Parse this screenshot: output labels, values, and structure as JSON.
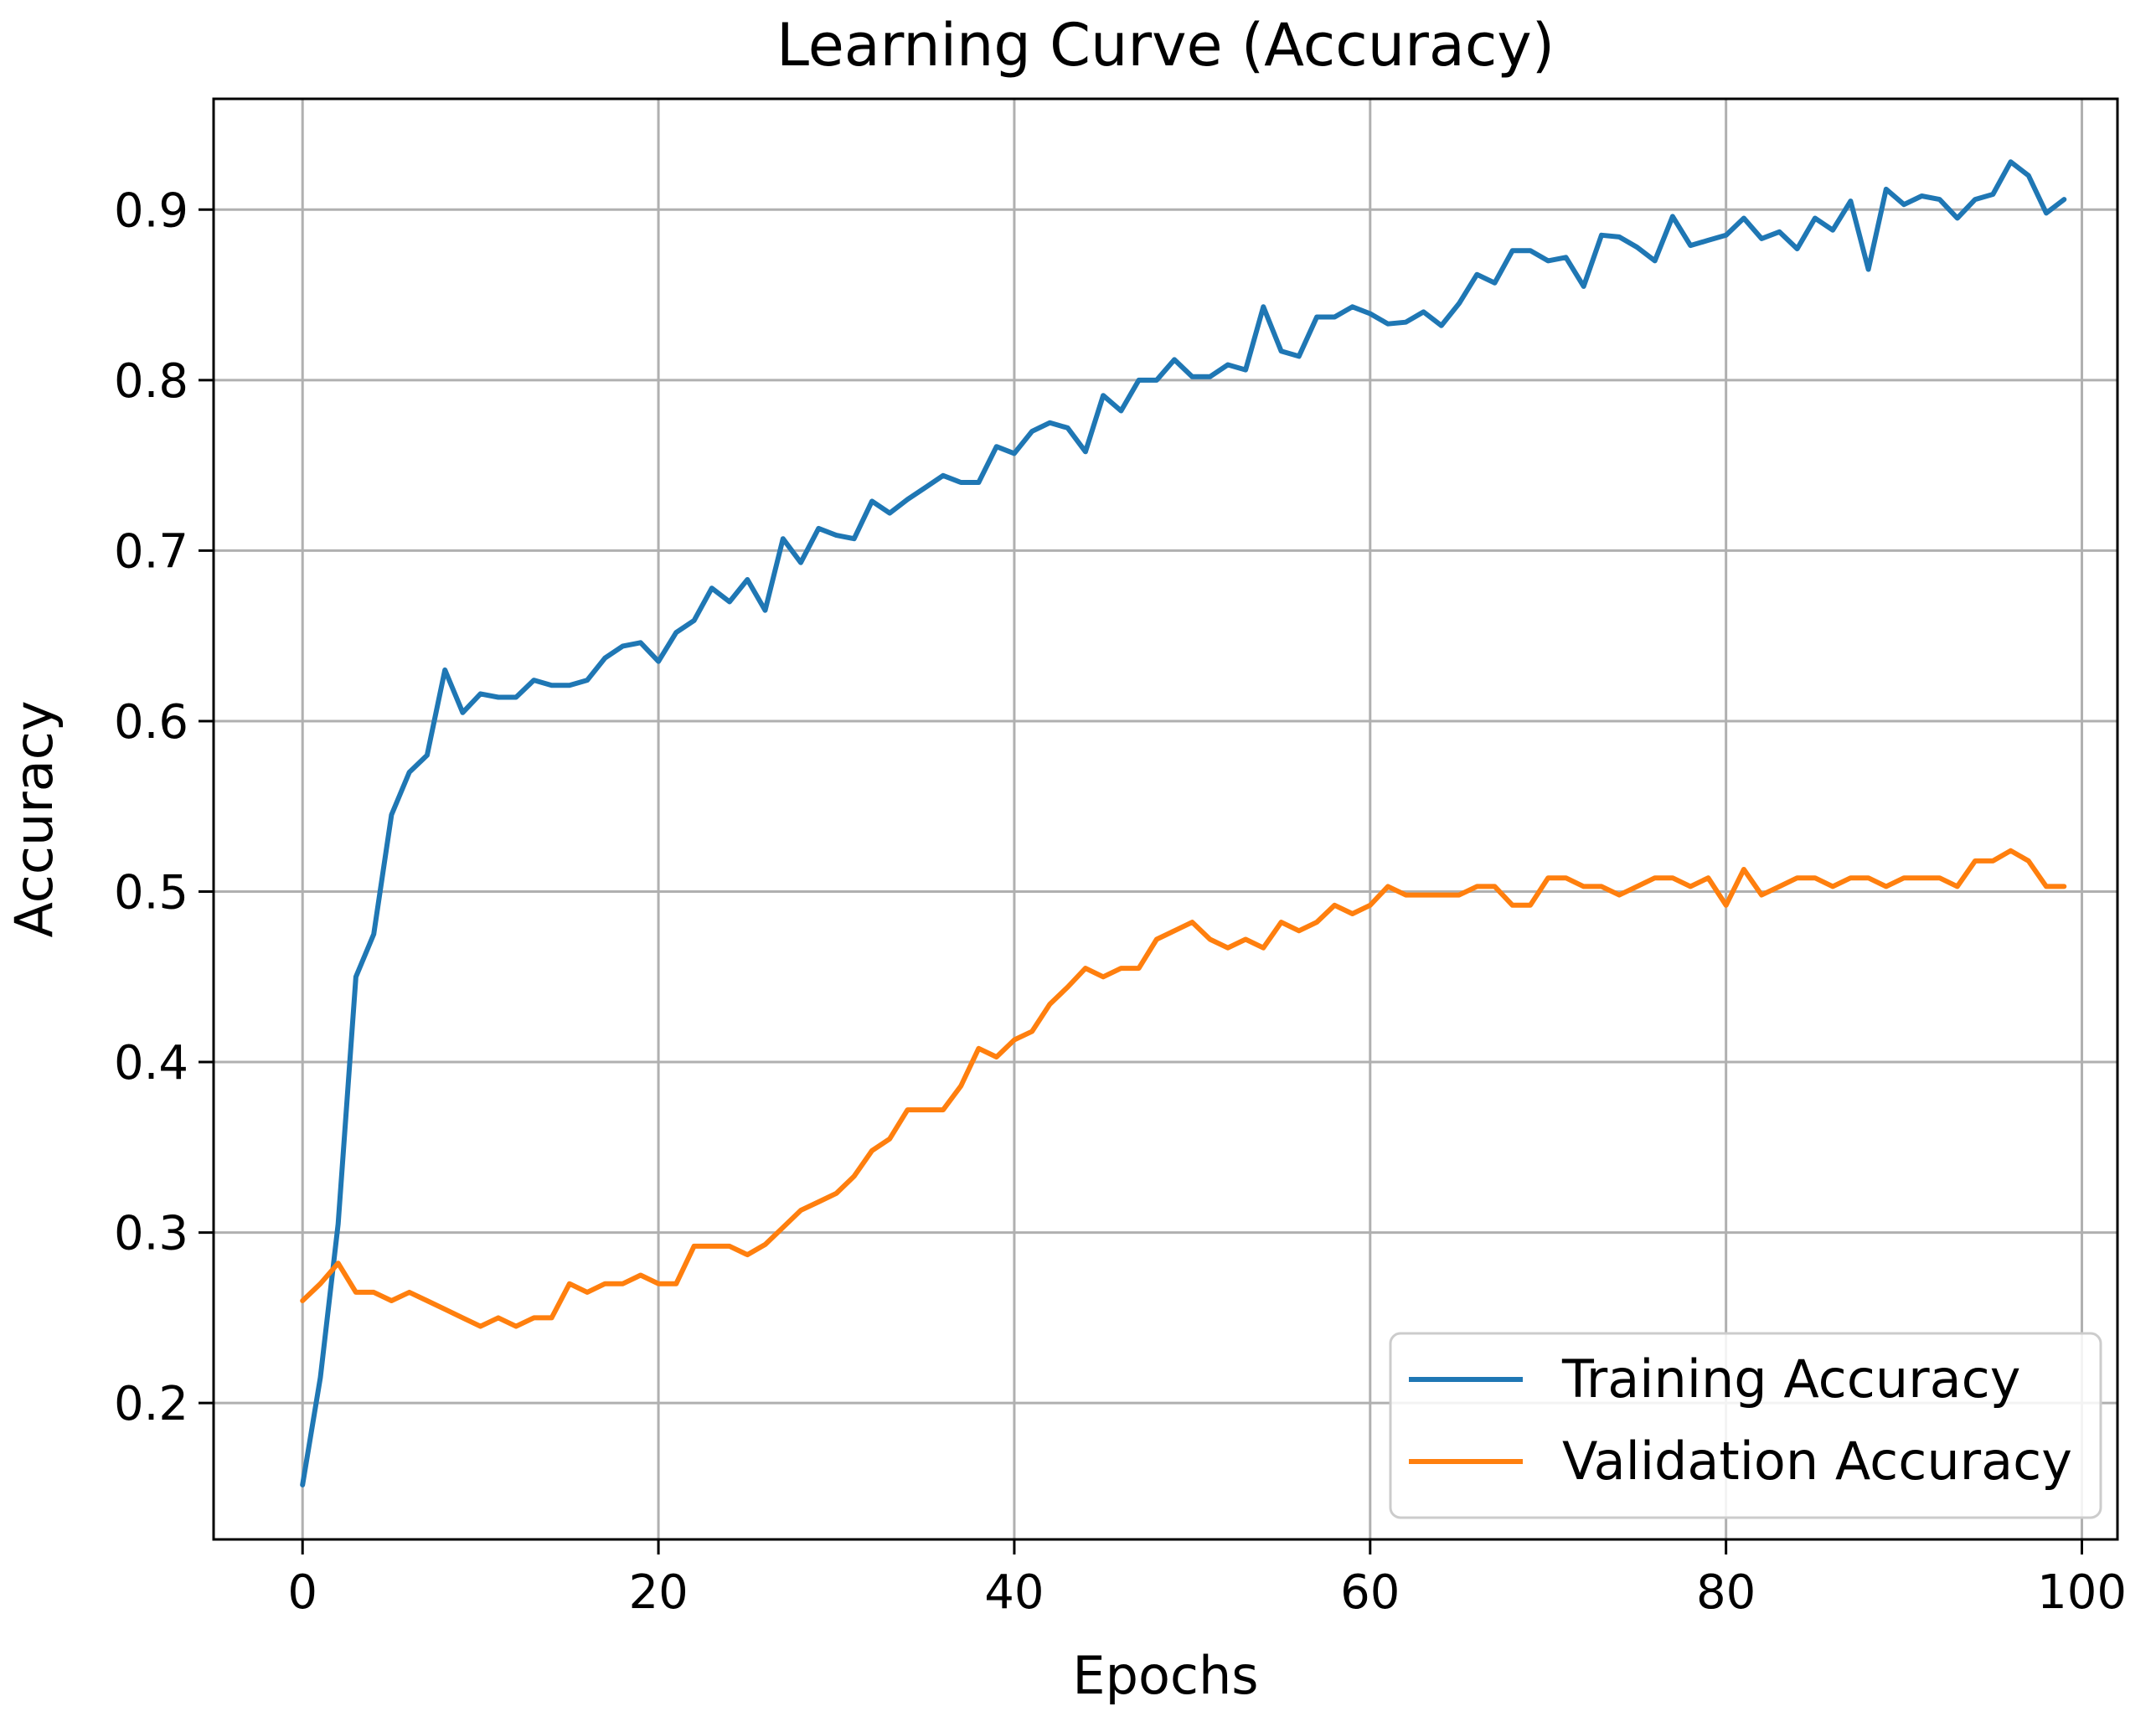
{
  "chart_data": {
    "type": "line",
    "title": "Learning Curve (Accuracy)",
    "xlabel": "Epochs",
    "ylabel": "Accuracy",
    "xlim": [
      -5,
      102
    ],
    "ylim": [
      0.12,
      0.965
    ],
    "grid": true,
    "legend_position": "lower-right",
    "x_ticks": [
      {
        "value": 0,
        "label": "0"
      },
      {
        "value": 20,
        "label": "20"
      },
      {
        "value": 40,
        "label": "40"
      },
      {
        "value": 60,
        "label": "60"
      },
      {
        "value": 80,
        "label": "80"
      },
      {
        "value": 100,
        "label": "100"
      }
    ],
    "y_ticks": [
      {
        "value": 0.2,
        "label": "0.2"
      },
      {
        "value": 0.3,
        "label": "0.3"
      },
      {
        "value": 0.4,
        "label": "0.4"
      },
      {
        "value": 0.5,
        "label": "0.5"
      },
      {
        "value": 0.6,
        "label": "0.6"
      },
      {
        "value": 0.7,
        "label": "0.7"
      },
      {
        "value": 0.8,
        "label": "0.8"
      },
      {
        "value": 0.9,
        "label": "0.9"
      }
    ],
    "series": [
      {
        "name": "Training Accuracy",
        "color": "#1f77b4",
        "values": [
          0.152,
          0.215,
          0.305,
          0.45,
          0.475,
          0.545,
          0.57,
          0.58,
          0.63,
          0.605,
          0.616,
          0.614,
          0.614,
          0.624,
          0.621,
          0.621,
          0.624,
          0.637,
          0.644,
          0.646,
          0.635,
          0.652,
          0.659,
          0.678,
          0.67,
          0.683,
          0.665,
          0.707,
          0.693,
          0.713,
          0.709,
          0.707,
          0.729,
          0.722,
          0.73,
          0.737,
          0.744,
          0.74,
          0.74,
          0.761,
          0.757,
          0.77,
          0.775,
          0.772,
          0.758,
          0.791,
          0.782,
          0.8,
          0.8,
          0.812,
          0.802,
          0.802,
          0.809,
          0.806,
          0.843,
          0.817,
          0.814,
          0.837,
          0.837,
          0.843,
          0.839,
          0.833,
          0.834,
          0.84,
          0.832,
          0.845,
          0.862,
          0.857,
          0.876,
          0.876,
          0.87,
          0.872,
          0.855,
          0.885,
          0.884,
          0.878,
          0.87,
          0.896,
          0.879,
          0.882,
          0.885,
          0.895,
          0.883,
          0.887,
          0.877,
          0.895,
          0.888,
          0.905,
          0.865,
          0.912,
          0.903,
          0.908,
          0.906,
          0.895,
          0.906,
          0.909,
          0.928,
          0.92,
          0.898,
          0.906
        ]
      },
      {
        "name": "Validation Accuracy",
        "color": "#ff7f0e",
        "values": [
          0.26,
          0.27,
          0.282,
          0.265,
          0.265,
          0.26,
          0.265,
          0.26,
          0.255,
          0.25,
          0.245,
          0.25,
          0.245,
          0.25,
          0.25,
          0.27,
          0.265,
          0.27,
          0.27,
          0.275,
          0.27,
          0.27,
          0.292,
          0.292,
          0.292,
          0.287,
          0.293,
          0.303,
          0.313,
          0.318,
          0.323,
          0.333,
          0.348,
          0.355,
          0.372,
          0.372,
          0.372,
          0.386,
          0.408,
          0.403,
          0.413,
          0.418,
          0.434,
          0.444,
          0.455,
          0.45,
          0.455,
          0.455,
          0.472,
          0.477,
          0.482,
          0.472,
          0.467,
          0.472,
          0.467,
          0.482,
          0.477,
          0.482,
          0.492,
          0.487,
          0.492,
          0.503,
          0.498,
          0.498,
          0.498,
          0.498,
          0.503,
          0.503,
          0.492,
          0.492,
          0.508,
          0.508,
          0.503,
          0.503,
          0.498,
          0.503,
          0.508,
          0.508,
          0.503,
          0.508,
          0.492,
          0.513,
          0.498,
          0.503,
          0.508,
          0.508,
          0.503,
          0.508,
          0.508,
          0.503,
          0.508,
          0.508,
          0.508,
          0.503,
          0.518,
          0.518,
          0.524,
          0.518,
          0.503,
          0.503
        ]
      }
    ]
  }
}
